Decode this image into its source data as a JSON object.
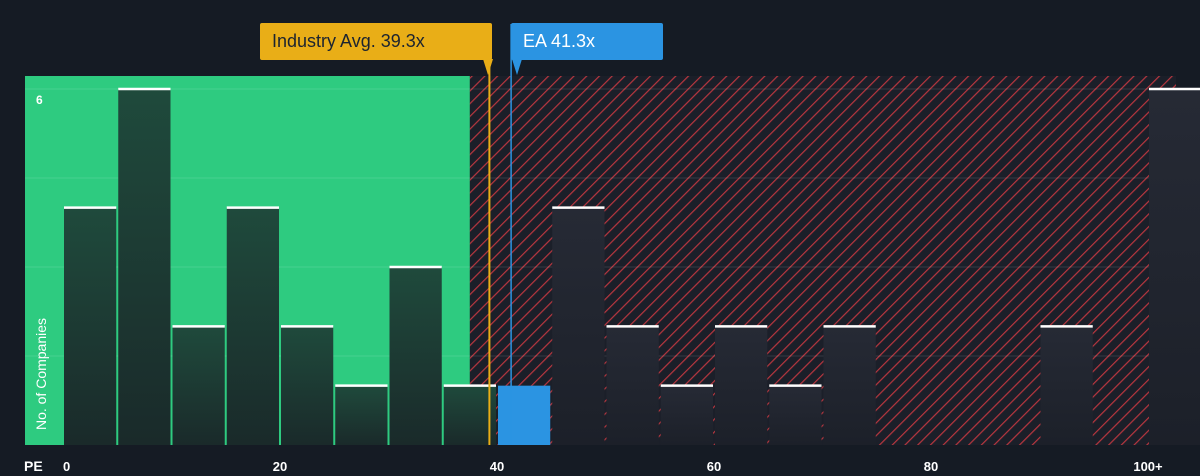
{
  "chart_data": {
    "type": "bar",
    "xlabel": "PE",
    "ylabel": "No. of Companies",
    "x_ticks": [
      "0",
      "20",
      "40",
      "60",
      "80",
      "100+"
    ],
    "y_tick_labels": [
      "6"
    ],
    "xlim": [
      0,
      102
    ],
    "ylim": [
      0,
      6.2
    ],
    "bins": [
      {
        "from": 0,
        "to": 5,
        "count": 4
      },
      {
        "from": 5,
        "to": 10,
        "count": 6
      },
      {
        "from": 10,
        "to": 15,
        "count": 2
      },
      {
        "from": 15,
        "to": 20,
        "count": 4
      },
      {
        "from": 20,
        "to": 25,
        "count": 2
      },
      {
        "from": 25,
        "to": 30,
        "count": 1
      },
      {
        "from": 30,
        "to": 35,
        "count": 3
      },
      {
        "from": 35,
        "to": 40,
        "count": 1
      },
      {
        "from": 40,
        "to": 45,
        "count": 1
      },
      {
        "from": 45,
        "to": 50,
        "count": 4
      },
      {
        "from": 50,
        "to": 55,
        "count": 2
      },
      {
        "from": 55,
        "to": 60,
        "count": 1
      },
      {
        "from": 60,
        "to": 65,
        "count": 2
      },
      {
        "from": 65,
        "to": 70,
        "count": 1
      },
      {
        "from": 70,
        "to": 75,
        "count": 2
      },
      {
        "from": 90,
        "to": 95,
        "count": 2
      },
      {
        "from": 100,
        "to": 105,
        "count": 6
      }
    ],
    "highlight_bin_index": 8,
    "fair_region_end": 37.5,
    "industry_avg": {
      "label": "Industry Avg. 39.3x",
      "value": 39.3
    },
    "company": {
      "label": "EA 41.3x",
      "value": 41.3
    },
    "colors": {
      "background": "#151b24",
      "fair_region": "#2ecb80",
      "overvalued_hatch": "#b8363f",
      "bar_fill_top": "#1f4a3c",
      "bar_fill_bottom": "#1a2a2a",
      "bar_over_fill": "#232833",
      "highlight_bar": "#2b94e2",
      "industry_line": "#e9ae17",
      "company_line": "#2b94e2"
    }
  }
}
